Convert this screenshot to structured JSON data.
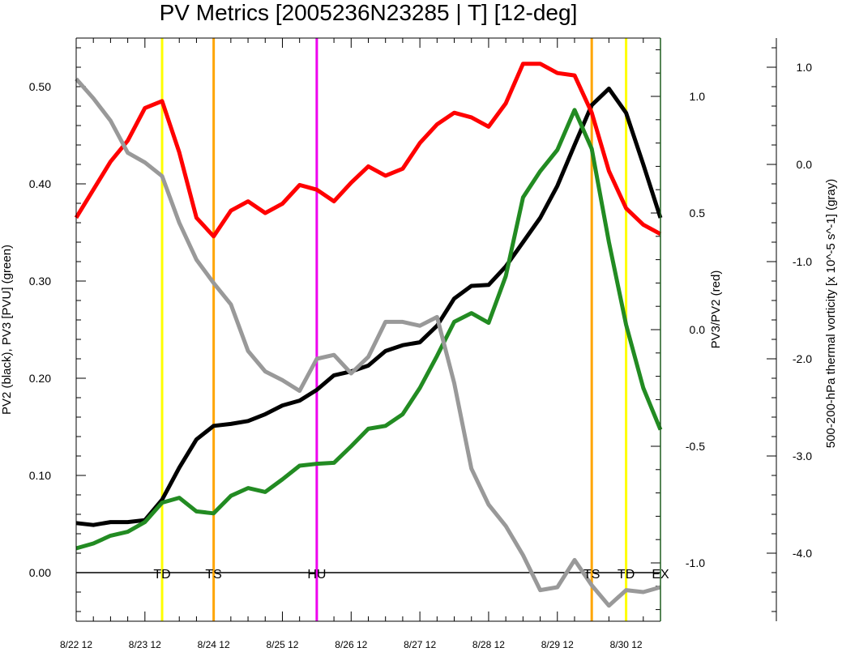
{
  "chart_data": {
    "type": "line",
    "title": "PV Metrics [2005236N23285 | T] [12-deg]",
    "x_tick_labels": [
      "8/22 12",
      "8/23 12",
      "8/24 12",
      "8/25 12",
      "8/26 12",
      "8/27 12",
      "8/28 12",
      "8/29 12",
      "8/30 12"
    ],
    "x_range_hours": [
      0,
      204
    ],
    "x_step_hours": 6,
    "left_axis": {
      "label": "PV2 (black), PV3 [PVU] (green)",
      "range": [
        -0.05,
        0.55
      ],
      "ticks": [
        "0.00",
        "0.10",
        "0.20",
        "0.30",
        "0.40",
        "0.50"
      ],
      "tick_values": [
        0,
        0.1,
        0.2,
        0.3,
        0.4,
        0.5
      ]
    },
    "right_axis": {
      "label": "PV3/PV2 (red)",
      "range": [
        -1.25,
        1.25
      ],
      "ticks": [
        "1.0",
        "0.5",
        "0.0",
        "-0.5",
        "-1.0"
      ],
      "tick_values": [
        1.0,
        0.5,
        0.0,
        -0.5,
        -1.0
      ]
    },
    "far_right_axis": {
      "label": "500-200-hPa thermal vorticity [x 10^-5 s^-1] (gray)",
      "range": [
        -4.7,
        1.3
      ],
      "ticks": [
        "1.0",
        "0.0",
        "-1.0",
        "-2.0",
        "-3.0",
        "-4.0"
      ],
      "tick_values": [
        1.0,
        0.0,
        -1.0,
        -2.0,
        -3.0,
        -4.0
      ]
    },
    "series": [
      {
        "name": "PV2",
        "axis": "left",
        "color": "#000000",
        "values": [
          0.051,
          0.049,
          0.052,
          0.052,
          0.054,
          0.075,
          0.108,
          0.137,
          0.151,
          0.153,
          0.156,
          0.163,
          0.172,
          0.177,
          0.188,
          0.203,
          0.207,
          0.213,
          0.228,
          0.234,
          0.237,
          0.254,
          0.282,
          0.295,
          0.296,
          0.315,
          0.34,
          0.365,
          0.398,
          0.44,
          0.481,
          0.498,
          0.473,
          0.42,
          0.365
        ]
      },
      {
        "name": "PV3",
        "axis": "left",
        "color": "#228b22",
        "values": [
          0.025,
          0.03,
          0.038,
          0.042,
          0.052,
          0.072,
          0.077,
          0.063,
          0.061,
          0.079,
          0.087,
          0.083,
          0.096,
          0.11,
          0.112,
          0.113,
          0.13,
          0.148,
          0.151,
          0.163,
          0.19,
          0.223,
          0.258,
          0.267,
          0.257,
          0.305,
          0.386,
          0.413,
          0.435,
          0.476,
          0.436,
          0.34,
          0.255,
          0.19,
          0.147
        ]
      },
      {
        "name": "PV3/PV2",
        "axis": "right",
        "color": "#ff0000",
        "values": [
          0.48,
          0.6,
          0.72,
          0.81,
          0.95,
          0.98,
          0.76,
          0.48,
          0.4,
          0.51,
          0.55,
          0.5,
          0.54,
          0.62,
          0.6,
          0.55,
          0.63,
          0.7,
          0.66,
          0.69,
          0.8,
          0.88,
          0.93,
          0.91,
          0.87,
          0.97,
          1.14,
          1.14,
          1.1,
          1.09,
          0.93,
          0.68,
          0.52,
          0.45,
          0.41
        ]
      },
      {
        "name": "500-200-hPa thermal vorticity",
        "axis": "far_right",
        "color": "#999999",
        "values": [
          0.88,
          0.68,
          0.45,
          0.12,
          0.02,
          -0.12,
          -0.6,
          -0.98,
          -1.22,
          -1.44,
          -1.92,
          -2.13,
          -2.22,
          -2.33,
          -2.0,
          -1.96,
          -2.15,
          -1.98,
          -1.62,
          -1.62,
          -1.66,
          -1.57,
          -2.25,
          -3.13,
          -3.5,
          -3.72,
          -4.02,
          -4.38,
          -4.35,
          -4.07,
          -4.33,
          -4.54,
          -4.38,
          -4.4,
          -4.35
        ]
      }
    ],
    "stage_lines": [
      {
        "label": "TD",
        "hour": 30,
        "color": "#ffff00"
      },
      {
        "label": "TS",
        "hour": 48,
        "color": "#ffa500"
      },
      {
        "label": "HU",
        "hour": 84,
        "color": "#ee00ee"
      },
      {
        "label": "TS",
        "hour": 180,
        "color": "#ffa500"
      },
      {
        "label": "TD",
        "hour": 192,
        "color": "#ffff00"
      },
      {
        "label": "EX",
        "hour": 204,
        "color": null
      }
    ],
    "grid": false
  }
}
